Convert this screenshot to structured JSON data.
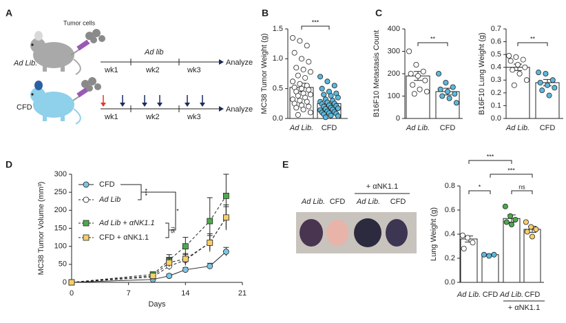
{
  "panels": [
    "A",
    "B",
    "C",
    "D",
    "E"
  ],
  "schematic": {
    "tumor_cells": "Tumor cells",
    "row1": {
      "label": "Ad Lib.",
      "diet": "Ad lib",
      "weeks": [
        "wk1",
        "wk2",
        "wk3"
      ],
      "end": "Analyze"
    },
    "row2": {
      "label": "CFD",
      "weeks": [
        "wk1",
        "wk2",
        "wk3"
      ],
      "end": "Analyze"
    }
  },
  "photo": {
    "labels": [
      "Ad Lib.",
      "CFD",
      "Ad Lib.",
      "CFD"
    ],
    "group": "+ αNK1.1"
  },
  "chart_data": [
    {
      "type": "bar",
      "ylabel": "MC38 Tumor Weight (g)",
      "categories": [
        "Ad Lib.",
        "CFD"
      ],
      "values": [
        0.52,
        0.25
      ],
      "errors": [
        0.07,
        0.03
      ],
      "colors": [
        "#ffffff",
        "#5bb8dc"
      ],
      "points": [
        [
          1.35,
          1.3,
          1.22,
          1.1,
          1.0,
          0.95,
          0.85,
          0.82,
          0.78,
          0.72,
          0.68,
          0.62,
          0.58,
          0.55,
          0.52,
          0.5,
          0.48,
          0.45,
          0.42,
          0.4,
          0.38,
          0.35,
          0.32,
          0.3,
          0.28,
          0.25,
          0.22,
          0.2,
          0.18,
          0.15,
          0.1,
          0.06
        ],
        [
          0.7,
          0.62,
          0.55,
          0.5,
          0.45,
          0.42,
          0.4,
          0.38,
          0.35,
          0.32,
          0.3,
          0.28,
          0.27,
          0.25,
          0.24,
          0.22,
          0.21,
          0.2,
          0.18,
          0.17,
          0.16,
          0.15,
          0.14,
          0.12,
          0.11,
          0.1,
          0.09,
          0.08,
          0.07,
          0.05,
          0.04,
          0.02
        ]
      ],
      "ylim": [
        0,
        1.5
      ],
      "yticks": [
        {
          "value": 0,
          "label": "0.0"
        },
        {
          "value": 0.5,
          "label": "0.5"
        },
        {
          "value": 1.0,
          "label": "1.0"
        },
        {
          "value": 1.5,
          "label": "1.5"
        }
      ],
      "annotations": [
        "***"
      ]
    },
    {
      "type": "bar",
      "ylabel": "B16F10 Metastasis Count",
      "categories": [
        "Ad Lib.",
        "CFD"
      ],
      "values": [
        190,
        120
      ],
      "errors": [
        20,
        15
      ],
      "colors": [
        "#ffffff",
        "#5bb8dc"
      ],
      "points": [
        [
          300,
          240,
          210,
          200,
          190,
          170,
          150,
          130,
          120,
          110
        ],
        [
          200,
          160,
          140,
          130,
          120,
          110,
          100,
          90,
          70
        ]
      ],
      "ylim": [
        0,
        400
      ],
      "yticks": [
        0,
        100,
        200,
        300,
        400
      ],
      "annotations": [
        "**"
      ]
    },
    {
      "type": "bar",
      "ylabel": "B16F10 Lung Weight (g)",
      "categories": [
        "Ad Lib.",
        "CFD"
      ],
      "values": [
        0.4,
        0.28
      ],
      "errors": [
        0.025,
        0.025
      ],
      "colors": [
        "#ffffff",
        "#5bb8dc"
      ],
      "points": [
        [
          0.49,
          0.48,
          0.46,
          0.45,
          0.42,
          0.4,
          0.38,
          0.35,
          0.3,
          0.26
        ],
        [
          0.36,
          0.35,
          0.3,
          0.28,
          0.26,
          0.24,
          0.22,
          0.18
        ]
      ],
      "ylim": [
        0,
        0.7
      ],
      "yticks": [
        {
          "value": 0,
          "label": "0.0"
        },
        {
          "value": 0.1,
          "label": "0.1"
        },
        {
          "value": 0.2,
          "label": "0.2"
        },
        {
          "value": 0.3,
          "label": "0.3"
        },
        {
          "value": 0.4,
          "label": "0.4"
        },
        {
          "value": 0.5,
          "label": "0.5"
        },
        {
          "value": 0.6,
          "label": "0.6"
        },
        {
          "value": 0.7,
          "label": "0.7"
        }
      ],
      "annotations": [
        "**"
      ]
    },
    {
      "type": "line",
      "ylabel": "MC38 Tumor Volume (mm³)",
      "xlabel": "Days",
      "x": [
        0,
        10,
        12,
        14,
        17,
        19
      ],
      "xlim": [
        0,
        21
      ],
      "xticks": [
        0,
        7,
        14,
        21
      ],
      "ylim": [
        0,
        300
      ],
      "yticks": [
        0,
        50,
        100,
        150,
        200,
        250,
        300
      ],
      "series": [
        {
          "name": "CFD",
          "color": "#7cc6e6",
          "marker": "circle",
          "dashed": false,
          "values": [
            0,
            8,
            18,
            35,
            45,
            85
          ],
          "errors": [
            0,
            3,
            5,
            6,
            8,
            12
          ]
        },
        {
          "name": "Ad Lib",
          "color": "#ffffff",
          "marker": "circle",
          "dashed": true,
          "values": [
            0,
            15,
            45,
            62,
            110,
            180
          ],
          "errors": [
            0,
            5,
            10,
            15,
            25,
            35
          ]
        },
        {
          "name": "Ad Lib + αNK1.1",
          "color": "#4caa4c",
          "marker": "square",
          "dashed": true,
          "values": [
            0,
            22,
            62,
            100,
            170,
            240
          ],
          "errors": [
            0,
            6,
            15,
            25,
            65,
            60
          ]
        },
        {
          "name": "CFD + αNK1.1",
          "color": "#f7cf6a",
          "marker": "square",
          "dashed": true,
          "values": [
            0,
            18,
            55,
            65,
            110,
            180
          ],
          "errors": [
            0,
            5,
            12,
            15,
            20,
            30
          ]
        }
      ],
      "annotations": [
        "***",
        "*",
        "ns"
      ]
    },
    {
      "type": "bar",
      "ylabel": "Lung Weight (g)",
      "categories": [
        "Ad Lib.",
        "CFD",
        "Ad Lib.",
        "CFD"
      ],
      "group_label": "+ αNK1.1",
      "values": [
        0.36,
        0.23,
        0.53,
        0.44
      ],
      "errors": [
        0.025,
        0.005,
        0.03,
        0.025
      ],
      "colors": [
        "#ffffff",
        "#5bb8dc",
        "#4caa4c",
        "#f7cf6a"
      ],
      "points": [
        [
          0.39,
          0.37,
          0.33,
          0.28
        ],
        [
          0.23,
          0.22,
          0.23
        ],
        [
          0.63,
          0.55,
          0.52,
          0.5,
          0.48
        ],
        [
          0.5,
          0.46,
          0.44,
          0.42,
          0.38
        ]
      ],
      "ylim": [
        0,
        0.8
      ],
      "yticks": [
        {
          "value": 0,
          "label": "0.0"
        },
        {
          "value": 0.2,
          "label": "0.2"
        },
        {
          "value": 0.4,
          "label": "0.4"
        },
        {
          "value": 0.6,
          "label": "0.6"
        },
        {
          "value": 0.8,
          "label": "0.8"
        }
      ],
      "annotations": [
        "***",
        "***",
        "*",
        "ns"
      ]
    }
  ]
}
